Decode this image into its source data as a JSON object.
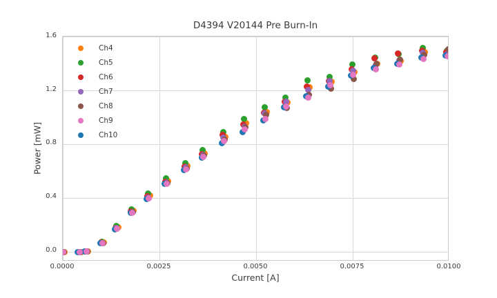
{
  "chart_data": {
    "type": "scatter",
    "title": "D4394 V20144 Pre Burn-In",
    "xlabel": "Current [A]",
    "ylabel": "Power [mW]",
    "xlim": [
      0.0,
      0.01
    ],
    "ylim": [
      -0.072,
      1.605
    ],
    "grid": true,
    "legend_position": "upper left",
    "marker_shape": "circle",
    "xticks": {
      "values": [
        0.0,
        0.0025,
        0.005,
        0.0075,
        0.01
      ],
      "labels": [
        "0.0000",
        "0.0025",
        "0.0050",
        "0.0075",
        "0.0100"
      ]
    },
    "yticks": {
      "values": [
        0.0,
        0.4,
        0.8,
        1.2,
        1.6
      ],
      "labels": [
        "0.0",
        "0.4",
        "0.8",
        "1.2",
        "1.6"
      ]
    },
    "x": [
      0.0,
      0.00043,
      0.00061,
      0.00102,
      0.00139,
      0.00179,
      0.00221,
      0.00268,
      0.00318,
      0.00363,
      0.00416,
      0.0047,
      0.00523,
      0.00577,
      0.00634,
      0.00691,
      0.0075,
      0.00809,
      0.0087,
      0.00932,
      0.00995
    ],
    "series": [
      {
        "name": "Ch4",
        "color": "#ff7f0e",
        "dx": 4e-05,
        "values": [
          0.0,
          0.0,
          0.001,
          0.07,
          0.181,
          0.304,
          0.417,
          0.527,
          0.641,
          0.733,
          0.855,
          0.958,
          1.042,
          1.113,
          1.225,
          1.268,
          1.338,
          1.4,
          1.424,
          1.49,
          1.484
        ]
      },
      {
        "name": "Ch5",
        "color": "#2ca02c",
        "dx": -1e-05,
        "values": [
          0.0,
          0.0,
          0.001,
          0.076,
          0.191,
          0.316,
          0.437,
          0.546,
          0.66,
          0.757,
          0.895,
          0.988,
          1.077,
          1.152,
          1.278,
          1.302,
          1.395,
          1.447,
          1.472,
          1.519,
          1.502
        ]
      },
      {
        "name": "Ch6",
        "color": "#d62728",
        "dx": -3e-05,
        "values": [
          0.0,
          0.0,
          0.001,
          0.068,
          0.179,
          0.301,
          0.413,
          0.522,
          0.637,
          0.726,
          0.87,
          0.951,
          1.037,
          1.121,
          1.232,
          1.272,
          1.362,
          1.441,
          1.479,
          1.5,
          1.491
        ]
      },
      {
        "name": "Ch7",
        "color": "#9467bd",
        "dx": 0.0,
        "values": [
          0.0,
          0.0,
          0.001,
          0.066,
          0.176,
          0.298,
          0.406,
          0.516,
          0.63,
          0.721,
          0.852,
          0.932,
          1.031,
          1.119,
          1.204,
          1.272,
          1.351,
          1.392,
          1.43,
          1.486,
          1.479
        ]
      },
      {
        "name": "Ch8",
        "color": "#8c564b",
        "dx": 2e-05,
        "values": [
          0.0,
          0.0,
          0.001,
          0.064,
          0.173,
          0.295,
          0.401,
          0.512,
          0.622,
          0.716,
          0.835,
          0.93,
          1.021,
          1.073,
          1.172,
          1.216,
          1.291,
          1.402,
          1.432,
          1.469,
          1.509
        ]
      },
      {
        "name": "Ch9",
        "color": "#e377c2",
        "dx": 1e-05,
        "values": [
          0.0,
          0.0,
          0.001,
          0.063,
          0.17,
          0.292,
          0.398,
          0.508,
          0.616,
          0.706,
          0.825,
          0.912,
          0.992,
          1.082,
          1.152,
          1.241,
          1.321,
          1.362,
          1.396,
          1.436,
          1.456
        ]
      },
      {
        "name": "Ch10",
        "color": "#1f77b4",
        "dx": -4e-05,
        "values": [
          0.0,
          0.0,
          0.001,
          0.062,
          0.168,
          0.29,
          0.395,
          0.505,
          0.611,
          0.701,
          0.812,
          0.893,
          0.982,
          1.079,
          1.158,
          1.232,
          1.312,
          1.372,
          1.401,
          1.446,
          1.466
        ]
      }
    ],
    "draw_order": [
      "Ch4",
      "Ch5",
      "Ch6",
      "Ch7",
      "Ch8",
      "Ch10",
      "Ch9"
    ]
  }
}
